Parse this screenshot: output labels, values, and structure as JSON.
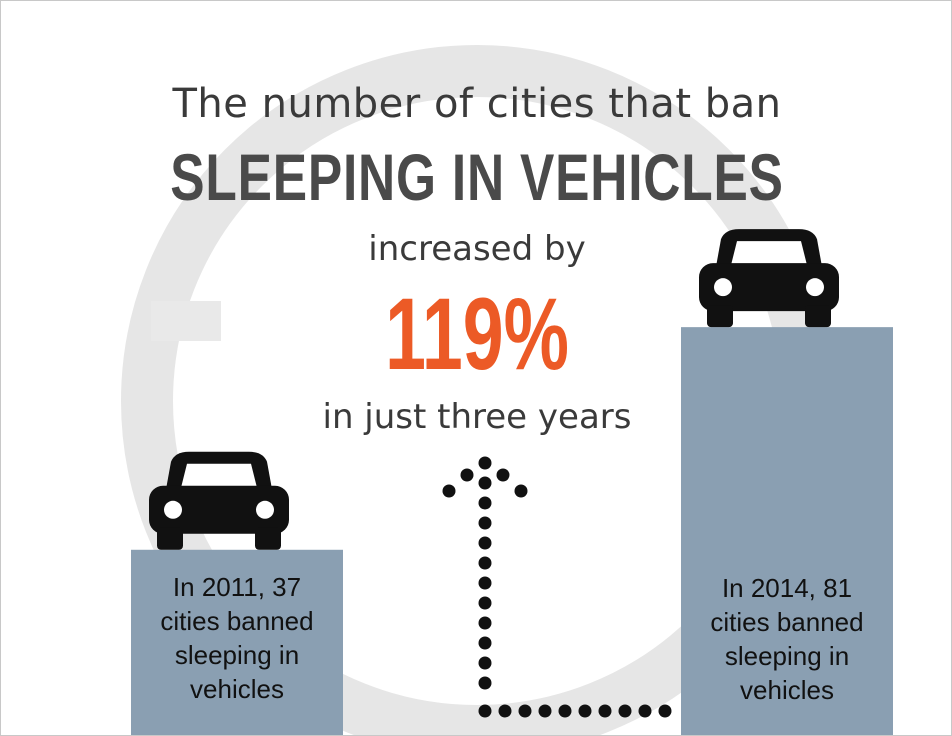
{
  "headline": {
    "line1": "The number of cities that ban",
    "line2": "SLEEPING IN VEHICLES",
    "line3": "increased by",
    "percent": "119%",
    "line5": "in just three years"
  },
  "colors": {
    "bar": "#8a9fb2",
    "accent": "#ec5a26",
    "text": "#3a3a3a",
    "car": "#111111",
    "arrow_dots": "#111111",
    "background_mark": "#d9d9d9"
  },
  "icons": [
    "car-icon",
    "dotted-arrow-up-icon",
    "clock-background-mark"
  ],
  "chart_data": {
    "type": "bar",
    "categories": [
      "2011",
      "2014"
    ],
    "values": [
      37,
      81
    ],
    "ylim": [
      0,
      100
    ],
    "grid": false,
    "bar_labels": [
      "In 2011, 37 cities banned sleeping in vehicles",
      "In 2014, 81 cities banned sleeping in vehicles"
    ],
    "annotation": "119%"
  }
}
